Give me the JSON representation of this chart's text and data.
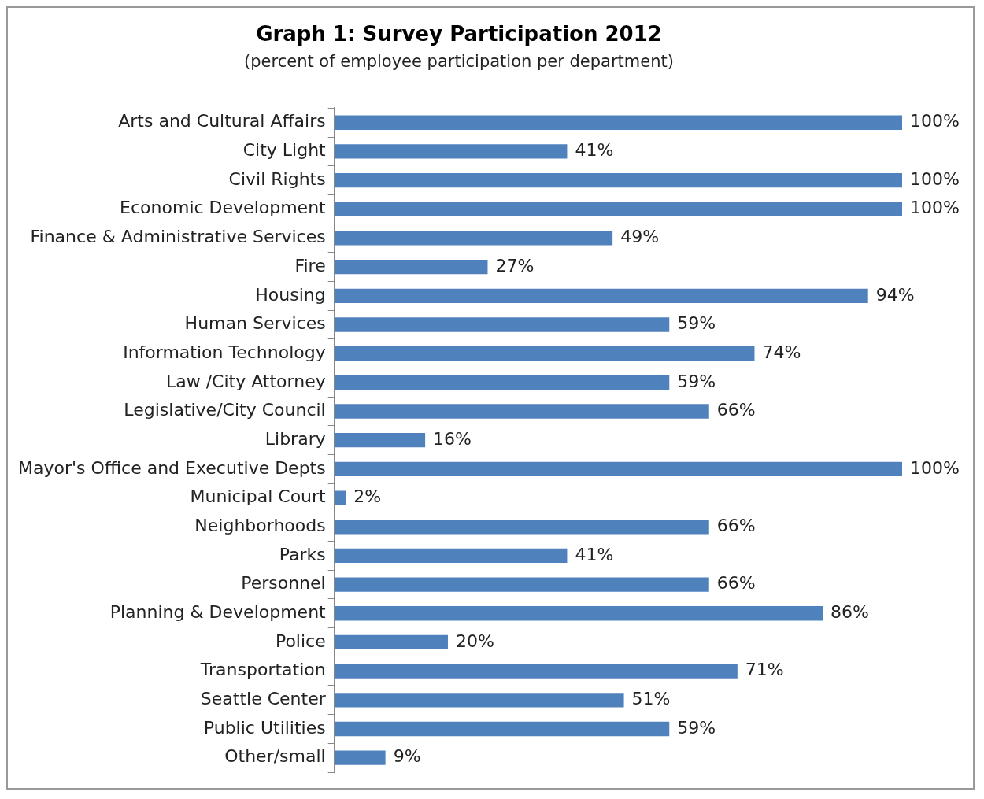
{
  "chart_data": {
    "type": "bar",
    "orientation": "horizontal",
    "title": "Graph 1: Survey Participation 2012",
    "subtitle": "(percent of employee participation per department)",
    "categories": [
      "Arts and Cultural Affairs",
      "City Light",
      "Civil Rights",
      "Economic Development",
      "Finance & Administrative Services",
      "Fire",
      "Housing",
      "Human Services",
      "Information Technology",
      "Law /City Attorney",
      "Legislative/City Council",
      "Library",
      "Mayor's Office and Executive Depts",
      "Municipal Court",
      "Neighborhoods",
      "Parks",
      "Personnel",
      "Planning & Development",
      "Police",
      "Transportation",
      "Seattle Center",
      "Public Utilities",
      "Other/small"
    ],
    "values": [
      100,
      41,
      100,
      100,
      49,
      27,
      94,
      59,
      74,
      59,
      66,
      16,
      100,
      2,
      66,
      41,
      66,
      86,
      20,
      71,
      51,
      59,
      9
    ],
    "value_labels": [
      "100%",
      "41%",
      "100%",
      "100%",
      "49%",
      "27%",
      "94%",
      "59%",
      "74%",
      "59%",
      "66%",
      "16%",
      "100%",
      "2%",
      "66%",
      "41%",
      "66%",
      "86%",
      "20%",
      "71%",
      "51%",
      "59%",
      "9%"
    ],
    "color": "#4f81bd",
    "grid": false,
    "legend": false,
    "tick_labels": "y"
  }
}
